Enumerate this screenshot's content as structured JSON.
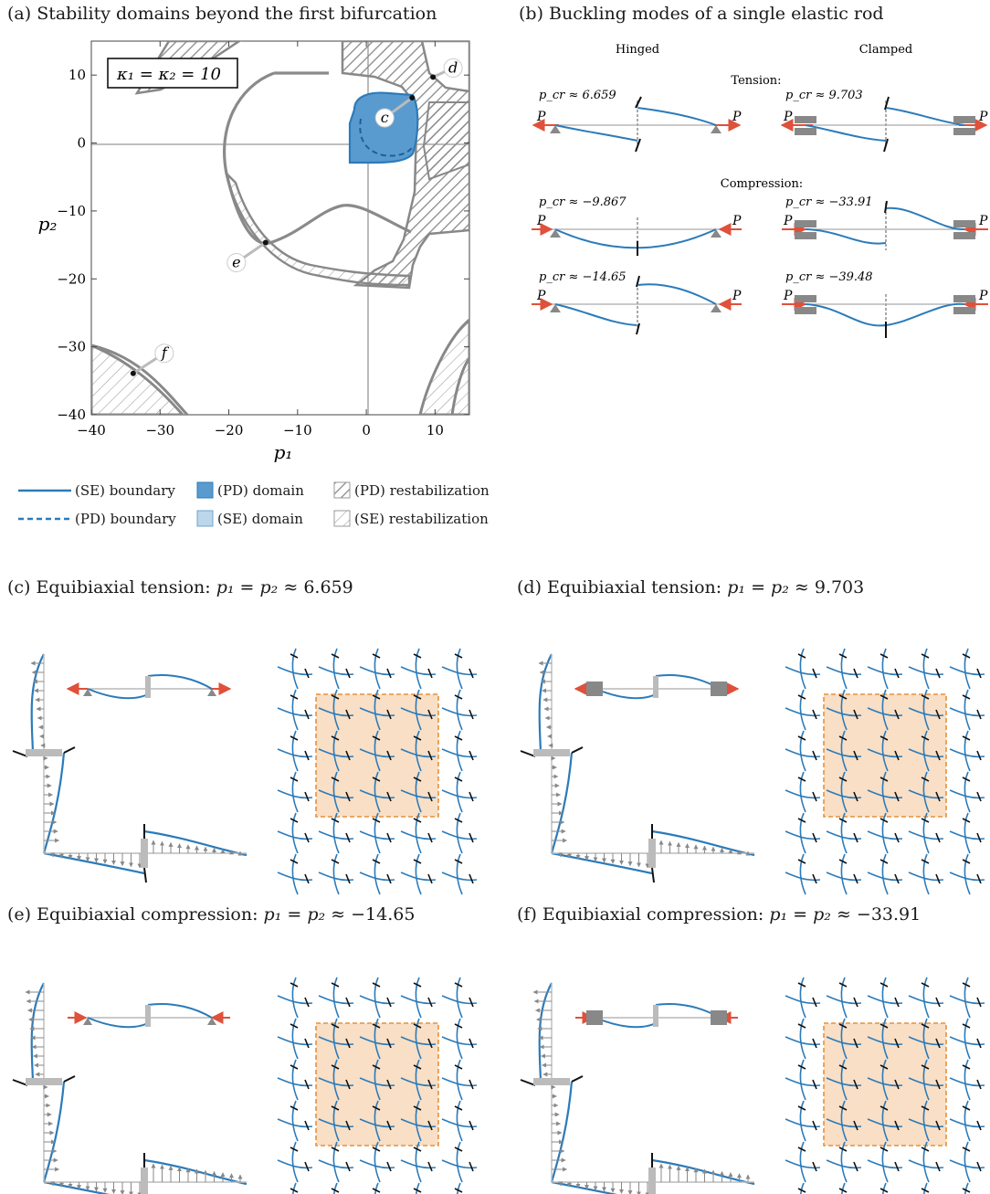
{
  "captions": {
    "a": "(a) Stability domains beyond the first bifurcation",
    "b": "(b) Buckling modes of a single elastic rod",
    "c_prefix": "(c) Equibiaxial tension:",
    "c_value": "6.659",
    "d_prefix": "(d) Equibiaxial tension:",
    "d_value": "9.703",
    "e_prefix": "(e) Equibiaxial compression:",
    "e_value": "−14.65",
    "f_prefix": "(f) Equibiaxial compression:",
    "f_value": "−33.91",
    "equation": "p₁ = p₂ ≈"
  },
  "chart_data": {
    "type": "domain-map",
    "xlabel": "p₁",
    "ylabel": "p₂",
    "xlim": [
      -40,
      15
    ],
    "ylim": [
      -40,
      15
    ],
    "xticks": [
      "−40",
      "−30",
      "−20",
      "−10",
      "0",
      "10"
    ],
    "yticks": [
      "10",
      "0",
      "−10",
      "−20",
      "−30",
      "−40"
    ],
    "kappa_label": "κ₁ = κ₂ = 10",
    "points": [
      {
        "label": "c",
        "x": 6.659,
        "y": 6.659
      },
      {
        "label": "d",
        "x": 9.703,
        "y": 9.703
      },
      {
        "label": "e",
        "x": -14.65,
        "y": -14.65
      },
      {
        "label": "f",
        "x": -33.91,
        "y": -33.91
      }
    ]
  },
  "legend": [
    {
      "label": "(SE) boundary"
    },
    {
      "label": "(PD) boundary"
    },
    {
      "label": "(PD) domain"
    },
    {
      "label": "(SE) domain"
    },
    {
      "label": "(PD) restabilization"
    },
    {
      "label": "(SE) restabilization"
    }
  ],
  "panel_b": {
    "hinged": "Hinged",
    "clamped": "Clamped",
    "tension": "Tension:",
    "compression": "Compression:",
    "load": "P",
    "pcr_h_t": "p_cr ≈ 6.659",
    "pcr_c_t": "p_cr ≈ 9.703",
    "pcr_h_c1": "p_cr ≈ −9.867",
    "pcr_c_c1": "p_cr ≈ −33.91",
    "pcr_h_c2": "p_cr ≈ −14.65",
    "pcr_c_c2": "p_cr ≈ −39.48"
  },
  "colors": {
    "blue": "#2b7bba",
    "gray": "#808080",
    "red": "#e0503a",
    "orange_fill": "#f8dfc6",
    "orange_line": "#e8913a"
  }
}
